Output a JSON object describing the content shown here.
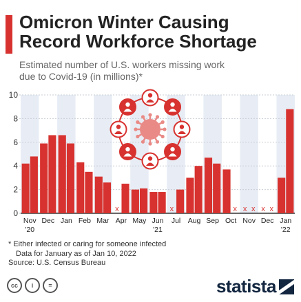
{
  "header": {
    "title_line1": "Omicron Winter Causing",
    "title_line2": "Record Workforce Shortage",
    "subtitle_line1": "Estimated number of U.S. workers missing work",
    "subtitle_line2": "due to Covid-19 (in millions)*"
  },
  "chart_data": {
    "type": "bar",
    "y_ticks": [
      0,
      2,
      4,
      6,
      8,
      10
    ],
    "ylim": [
      0,
      10
    ],
    "grid": true,
    "bar_color": "#d7322f",
    "missing_marker": "x",
    "month_labels": [
      "Nov",
      "Dec",
      "Jan",
      "Feb",
      "Mar",
      "Apr",
      "May",
      "Jun",
      "Jul",
      "Aug",
      "Sep",
      "Oct",
      "Nov",
      "Dec",
      "Jan"
    ],
    "year_labels": [
      {
        "label": "'20",
        "month_index": 0
      },
      {
        "label": "'21",
        "month_index": 7
      },
      {
        "label": "'22",
        "month_index": 14
      }
    ],
    "values": [
      [
        4.2,
        4.8
      ],
      [
        5.9,
        6.6
      ],
      [
        6.6,
        5.9
      ],
      [
        4.3,
        3.5
      ],
      [
        3.1,
        2.6
      ],
      [
        null,
        2.5
      ],
      [
        2.0,
        2.1
      ],
      [
        1.8,
        1.8
      ],
      [
        null,
        2.0
      ],
      [
        3.0,
        4.0
      ],
      [
        4.7,
        4.2
      ],
      [
        3.7,
        null
      ],
      [
        null,
        null
      ],
      [
        null,
        null
      ],
      [
        3.0,
        8.8
      ]
    ]
  },
  "footnotes": {
    "line1": "* Either infected or caring for someone infected",
    "line2": "Data for January as of Jan 10, 2022",
    "line3": "Source: U.S. Census Bureau"
  },
  "footer": {
    "brand": "statista",
    "license_icons": [
      "creative-commons-icon",
      "attribution-icon",
      "no-derivatives-icon"
    ]
  },
  "colors": {
    "accent": "#d7322f",
    "band": "#e8edf5",
    "text": "#222222",
    "brand": "#12263f"
  }
}
